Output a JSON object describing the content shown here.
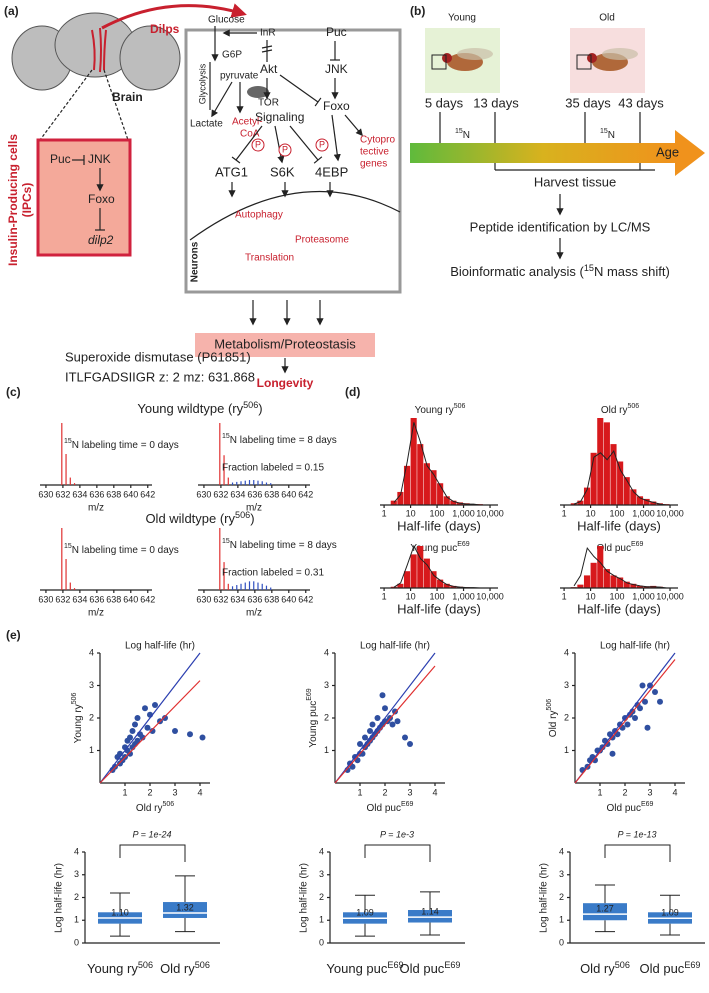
{
  "a": {
    "label": "(a)",
    "dilps": "Dilps",
    "glucose": "Glucose",
    "inr": "InR",
    "puc": "Puc",
    "g6p": "G6P",
    "glycolysis": "Glycolysis",
    "pyruvate": "pyruvate",
    "akt": "Akt",
    "jnk": "JNK",
    "tor": "TOR",
    "signaling": "Signaling",
    "foxo": "Foxo",
    "lactate": "Lactate",
    "acetyl": [
      "Acetyl-",
      "CoA"
    ],
    "p": "P",
    "atg1": "ATG1",
    "s6k": "S6K",
    "ebp": "4EBP",
    "cyto": [
      "Cytopro",
      "tective",
      "genes"
    ],
    "autophagy": "Autophagy",
    "proteasome": "Proteasome",
    "translation": "Translation",
    "neurons": "Neurons",
    "brain": "Brain",
    "ipc_box": {
      "puc": "Puc",
      "jnk": "JNK",
      "foxo": "Foxo",
      "dilp2": "dilp2"
    },
    "ipc": [
      "Insulin-Producing cells",
      "(IPCs)"
    ],
    "metabolism": "Metabolism/Proteostasis",
    "longevity": "Longevity"
  },
  "b": {
    "label": "(b)",
    "young": "Young",
    "old": "Old",
    "days": [
      "5 days",
      "13 days",
      "35 days",
      "43 days"
    ],
    "n15": [
      "15",
      "N"
    ],
    "age": "Age",
    "harvest": "Harvest tissue",
    "peptide": "Peptide identification by LC/MS",
    "bioinf": [
      "Bioinformatic analysis (",
      "15",
      "N mass shift)"
    ]
  },
  "c": {
    "label": "(c)",
    "protein": "Superoxide dismutase (P61851)",
    "peptide": "ITLFGADSIIGR  z: 2  mz: 631.868",
    "xlabel": "m/z",
    "xlim": [
      629.3,
      642.5
    ],
    "xticks": [
      630,
      632,
      634,
      636,
      638,
      640,
      642
    ],
    "ylim": [
      0,
      1
    ],
    "groups": [
      {
        "title": [
          "Young wildtype (ry",
          "506",
          ")"
        ],
        "spectra": [
          {
            "label": [
              "15",
              "N labeling time = 0 days"
            ],
            "red": {
              "x": [
                631.87,
                632.37,
                632.87,
                633.37
              ],
              "values": [
                1,
                0.5,
                0.12,
                0.03
              ]
            },
            "blue": {
              "x": [],
              "values": []
            }
          },
          {
            "label": [
              "15",
              "N labeling time = 8 days"
            ],
            "fraction": "Fraction labeled = 0.15",
            "red": {
              "x": [
                631.87,
                632.37,
                632.87
              ],
              "values": [
                1,
                0.48,
                0.12
              ]
            },
            "blue": {
              "x": [
                633.37,
                633.87,
                634.37,
                634.87,
                635.37,
                635.87,
                636.37,
                636.87,
                637.37,
                637.87
              ],
              "values": [
                0.04,
                0.05,
                0.06,
                0.07,
                0.08,
                0.08,
                0.07,
                0.06,
                0.04,
                0.03
              ]
            }
          }
        ]
      },
      {
        "title": [
          "Old wildtype (ry",
          "506",
          ")"
        ],
        "spectra": [
          {
            "label": [
              "15",
              "N labeling time = 0 days"
            ],
            "red": {
              "x": [
                631.87,
                632.37,
                632.87,
                633.37
              ],
              "values": [
                1,
                0.5,
                0.12,
                0.03
              ]
            },
            "blue": {
              "x": [],
              "values": []
            }
          },
          {
            "label": [
              "15",
              "N labeling time = 8 days"
            ],
            "fraction": "Fraction labeled = 0.31",
            "red": {
              "x": [
                631.87,
                632.37,
                632.87
              ],
              "values": [
                1,
                0.45,
                0.1
              ]
            },
            "blue": {
              "x": [
                633.37,
                633.87,
                634.37,
                634.87,
                635.37,
                635.87,
                636.37,
                636.87,
                637.37,
                637.87
              ],
              "values": [
                0.06,
                0.08,
                0.1,
                0.12,
                0.14,
                0.14,
                0.12,
                0.1,
                0.07,
                0.04
              ]
            }
          }
        ]
      }
    ]
  },
  "d": {
    "label": "(d)",
    "type": "histogram",
    "log": true,
    "xlabel": "Half-life (days)",
    "xlim": [
      0.7,
      20000
    ],
    "xticks": [
      1,
      10,
      100,
      {
        "value": 1000,
        "label": "1,000"
      },
      {
        "value": 10000,
        "label": "10,000"
      }
    ],
    "ylim": [
      0,
      100
    ],
    "color": "#d7191c",
    "bins": [
      1.78,
      3.16,
      5.62,
      10,
      17.8,
      31.6,
      56.2,
      100,
      178,
      316,
      562,
      1000,
      1778,
      3162,
      5623,
      10000
    ],
    "series": [
      {
        "name": [
          "Young ry",
          "506"
        ],
        "values": [
          5,
          15,
          45,
          100,
          70,
          48,
          40,
          25,
          10,
          5,
          3,
          2,
          1,
          1,
          0
        ],
        "curve": [
          3,
          12,
          50,
          95,
          72,
          45,
          35,
          22,
          9,
          4,
          2,
          1,
          1,
          0,
          0
        ]
      },
      {
        "name": [
          "Old ry",
          "506"
        ],
        "values": [
          2,
          5,
          20,
          60,
          100,
          95,
          70,
          50,
          32,
          18,
          10,
          7,
          4,
          2,
          1
        ],
        "curve": [
          1,
          4,
          18,
          55,
          60,
          52,
          62,
          40,
          28,
          15,
          8,
          5,
          3,
          1,
          0
        ]
      },
      {
        "name": [
          "Young puc",
          "E69"
        ],
        "values": [
          3,
          10,
          40,
          80,
          100,
          70,
          40,
          20,
          10,
          5,
          3,
          2,
          1,
          0,
          0
        ],
        "curve": [
          2,
          12,
          55,
          100,
          70,
          55,
          30,
          18,
          8,
          4,
          2,
          1,
          1,
          0,
          0
        ]
      },
      {
        "name": [
          "Old puc",
          "E69"
        ],
        "values": [
          2,
          8,
          30,
          60,
          100,
          45,
          30,
          25,
          15,
          10,
          5,
          4,
          5,
          3,
          1
        ],
        "curve": [
          5,
          30,
          95,
          75,
          60,
          40,
          30,
          22,
          12,
          8,
          5,
          3,
          3,
          2,
          0
        ]
      }
    ]
  },
  "e": {
    "label": "(e)",
    "scatter": {
      "type": "scatter",
      "title": "Log half-life (hr)",
      "xlim": [
        0,
        4
      ],
      "ylim": [
        0,
        4
      ],
      "xticks": [
        1,
        2,
        3,
        4
      ],
      "yticks": [
        1,
        2,
        3,
        4
      ],
      "color": "#2f4fa0",
      "plots": [
        {
          "ylabel": [
            "Young ry",
            "506"
          ],
          "xlabel": [
            "Old ry",
            "506"
          ],
          "x": [
            0.5,
            0.6,
            0.7,
            0.8,
            0.8,
            0.9,
            1.0,
            1.0,
            1.1,
            1.1,
            1.2,
            1.2,
            1.3,
            1.3,
            1.4,
            1.4,
            1.5,
            1.5,
            1.6,
            1.7,
            1.8,
            1.9,
            2.0,
            2.1,
            2.2,
            2.4,
            2.6,
            3.0,
            3.6,
            4.1
          ],
          "y": [
            0.4,
            0.5,
            0.8,
            0.6,
            0.9,
            0.7,
            0.8,
            1.1,
            1.0,
            1.3,
            0.9,
            1.4,
            1.1,
            1.6,
            1.2,
            1.8,
            1.3,
            2.0,
            1.5,
            1.4,
            2.3,
            1.7,
            2.1,
            1.6,
            2.4,
            1.9,
            2.0,
            1.6,
            1.5,
            1.4
          ],
          "lines": [
            {
              "color": "#2b3fb0",
              "x": [
                0,
                4
              ],
              "y": [
                0,
                4
              ]
            },
            {
              "color": "#e03030",
              "x": [
                0,
                4
              ],
              "y": [
                0,
                3.15
              ]
            }
          ]
        },
        {
          "ylabel": [
            "Young puc",
            "E69"
          ],
          "xlabel": [
            "Old puc",
            "E69"
          ],
          "x": [
            0.5,
            0.6,
            0.7,
            0.8,
            0.9,
            1.0,
            1.0,
            1.1,
            1.2,
            1.2,
            1.3,
            1.4,
            1.4,
            1.5,
            1.5,
            1.6,
            1.7,
            1.7,
            1.8,
            1.9,
            2.0,
            2.0,
            2.1,
            2.2,
            2.3,
            2.5,
            2.8,
            3.0,
            2.4,
            1.9
          ],
          "y": [
            0.4,
            0.6,
            0.5,
            0.8,
            0.7,
            0.9,
            1.2,
            0.9,
            1.1,
            1.4,
            1.2,
            1.3,
            1.6,
            1.4,
            1.8,
            1.5,
            1.6,
            2.0,
            1.7,
            1.8,
            1.9,
            2.3,
            1.9,
            2.0,
            1.8,
            1.9,
            1.4,
            1.2,
            2.2,
            2.7
          ],
          "lines": [
            {
              "color": "#2b3fb0",
              "x": [
                0,
                4
              ],
              "y": [
                0,
                4
              ]
            },
            {
              "color": "#e03030",
              "x": [
                0,
                4
              ],
              "y": [
                0,
                3.6
              ]
            }
          ]
        },
        {
          "ylabel": [
            "Old ry",
            "506"
          ],
          "xlabel": [
            "Old puc",
            "E69"
          ],
          "x": [
            0.3,
            0.5,
            0.6,
            0.7,
            0.8,
            0.9,
            1.0,
            1.1,
            1.2,
            1.3,
            1.4,
            1.5,
            1.6,
            1.7,
            1.8,
            1.9,
            2.0,
            2.1,
            2.2,
            2.3,
            2.4,
            2.5,
            2.6,
            2.8,
            3.0,
            3.2,
            3.4,
            2.9,
            1.5,
            2.7
          ],
          "y": [
            0.4,
            0.5,
            0.7,
            0.8,
            0.7,
            1.0,
            1.0,
            1.1,
            1.3,
            1.2,
            1.5,
            1.4,
            1.6,
            1.5,
            1.8,
            1.7,
            2.0,
            1.8,
            2.1,
            2.2,
            2.0,
            2.4,
            2.3,
            2.5,
            3.0,
            2.8,
            2.5,
            1.7,
            0.9,
            3.0
          ],
          "lines": [
            {
              "color": "#2b3fb0",
              "x": [
                0,
                4
              ],
              "y": [
                0,
                4
              ]
            },
            {
              "color": "#e03030",
              "x": [
                0,
                4
              ],
              "y": [
                0,
                3.8
              ]
            }
          ]
        }
      ]
    },
    "box": {
      "type": "box",
      "ylabel": "Log half-life (hr)",
      "ylim": [
        0,
        4
      ],
      "yticks": [
        0,
        1,
        2,
        3,
        4
      ],
      "color": "#3a7bc8",
      "plots": [
        {
          "p": "P = 1e-24",
          "boxes": [
            {
              "name": [
                "Young ry",
                "506"
              ],
              "values": [
                0.3,
                0.85,
                1.1,
                1.35,
                2.2
              ],
              "median_label": "1.10"
            },
            {
              "name": [
                "Old ry",
                "506"
              ],
              "values": [
                0.5,
                1.1,
                1.32,
                1.8,
                2.95
              ],
              "median_label": "1.32"
            }
          ]
        },
        {
          "p": "P = 1e-3",
          "boxes": [
            {
              "name": [
                "Young puc",
                "E69"
              ],
              "values": [
                0.3,
                0.85,
                1.09,
                1.35,
                2.1
              ],
              "median_label": "1.09"
            },
            {
              "name": [
                "Old puc",
                "E69"
              ],
              "values": [
                0.35,
                0.9,
                1.14,
                1.45,
                2.25
              ],
              "median_label": "1.14"
            }
          ]
        },
        {
          "p": "P = 1e-13",
          "boxes": [
            {
              "name": [
                "Old ry",
                "506"
              ],
              "values": [
                0.5,
                1.0,
                1.27,
                1.75,
                2.55
              ],
              "median_label": "1.27"
            },
            {
              "name": [
                "Old puc",
                "E69"
              ],
              "values": [
                0.35,
                0.85,
                1.09,
                1.35,
                2.1
              ],
              "median_label": "1.09"
            }
          ]
        }
      ]
    }
  }
}
